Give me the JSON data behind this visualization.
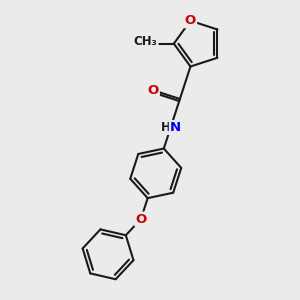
{
  "bg_color": "#ebebeb",
  "bond_color": "#1a1a1a",
  "bond_width": 1.5,
  "atom_colors": {
    "O": "#cc0000",
    "N": "#0000ee",
    "C": "#1a1a1a",
    "H": "#1a1a1a"
  },
  "font_size_atom": 9.5,
  "font_size_H": 8.5
}
